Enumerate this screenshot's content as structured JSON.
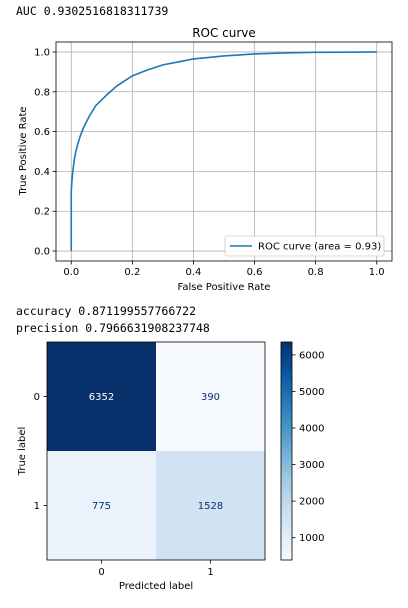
{
  "outputs": {
    "auc_line": "AUC 0.9302516818311739",
    "accuracy_line": "accuracy 0.871199557766722",
    "precision_line": "precision 0.7966631908237748"
  },
  "colors": {
    "roc_line": "#1f77b4",
    "grid": "#b0b0b0",
    "cmap_low": "#f7fbff",
    "cmap_high": "#08306b"
  },
  "chart_data": [
    {
      "type": "line",
      "title": "ROC curve",
      "xlabel": "False Positive Rate",
      "ylabel": "True Positive Rate",
      "xlim": [
        -0.05,
        1.05
      ],
      "ylim": [
        -0.05,
        1.05
      ],
      "xticks": [
        "0.0",
        "0.2",
        "0.4",
        "0.6",
        "0.8",
        "1.0"
      ],
      "yticks": [
        "0.0",
        "0.2",
        "0.4",
        "0.6",
        "0.8",
        "1.0"
      ],
      "grid": true,
      "legend_position": "lower-right",
      "series": [
        {
          "name": "ROC curve (area = 0.93)",
          "x": [
            0.0,
            0.0,
            0.002,
            0.005,
            0.01,
            0.015,
            0.02,
            0.03,
            0.04,
            0.05,
            0.06,
            0.08,
            0.1,
            0.12,
            0.15,
            0.18,
            0.2,
            0.25,
            0.3,
            0.35,
            0.4,
            0.5,
            0.6,
            0.7,
            0.8,
            0.9,
            1.0
          ],
          "y": [
            0.0,
            0.3,
            0.35,
            0.4,
            0.46,
            0.5,
            0.53,
            0.58,
            0.62,
            0.65,
            0.68,
            0.73,
            0.76,
            0.79,
            0.83,
            0.86,
            0.88,
            0.91,
            0.935,
            0.95,
            0.965,
            0.98,
            0.99,
            0.995,
            0.998,
            0.999,
            1.0
          ]
        }
      ]
    },
    {
      "type": "heatmap",
      "xlabel": "Predicted label",
      "ylabel": "True label",
      "x_categories": [
        "0",
        "1"
      ],
      "y_categories": [
        "0",
        "1"
      ],
      "values": [
        [
          6352,
          390
        ],
        [
          775,
          1528
        ]
      ],
      "colorbar_ticks": [
        "1000",
        "2000",
        "3000",
        "4000",
        "5000",
        "6000"
      ],
      "colorbar_range": [
        390,
        6352
      ]
    }
  ]
}
